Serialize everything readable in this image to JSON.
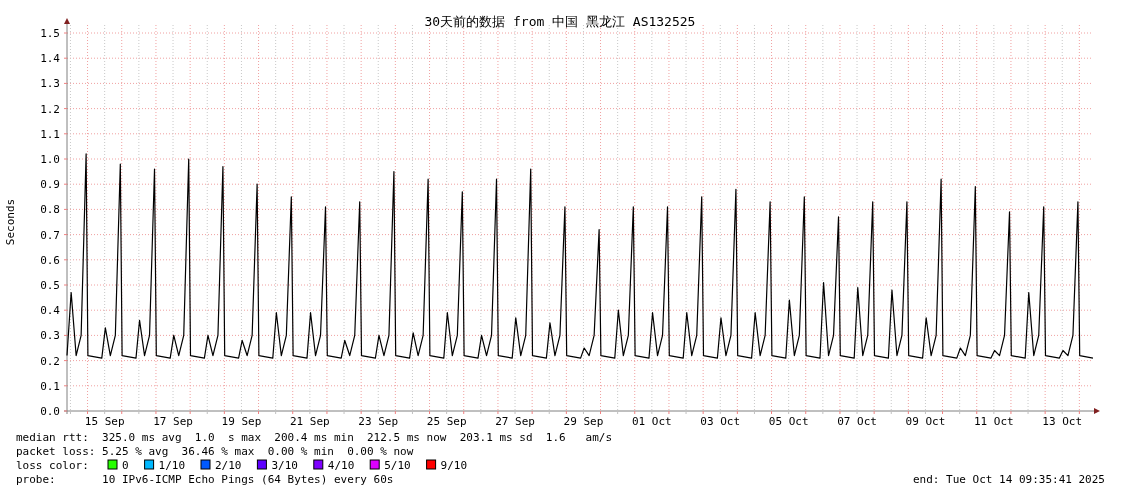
{
  "chart_data": {
    "type": "line",
    "title": "30天前的数据 from 中国 黑龙江 AS132525",
    "ylabel": "Seconds",
    "legend_title": "loss color:",
    "legend": "bottom",
    "grid": true,
    "xlim": [
      "2025-09-14T09:35",
      "2025-10-14T09:35"
    ],
    "xticks": [
      {
        "value": "2025-09-14T12:00",
        "label": null
      },
      {
        "value": "2025-09-15T00:00",
        "label": null
      },
      {
        "value": "2025-09-15T12:00",
        "label": "15 Sep"
      },
      {
        "value": "2025-09-16T00:00",
        "label": null
      },
      {
        "value": "2025-09-16T12:00",
        "label": null
      },
      {
        "value": "2025-09-17T00:00",
        "label": null
      },
      {
        "value": "2025-09-17T12:00",
        "label": "17 Sep"
      },
      {
        "value": "2025-09-18T00:00",
        "label": null
      },
      {
        "value": "2025-09-18T12:00",
        "label": null
      },
      {
        "value": "2025-09-19T00:00",
        "label": null
      },
      {
        "value": "2025-09-19T12:00",
        "label": "19 Sep"
      },
      {
        "value": "2025-09-20T00:00",
        "label": null
      },
      {
        "value": "2025-09-20T12:00",
        "label": null
      },
      {
        "value": "2025-09-21T00:00",
        "label": null
      },
      {
        "value": "2025-09-21T12:00",
        "label": "21 Sep"
      },
      {
        "value": "2025-09-22T00:00",
        "label": null
      },
      {
        "value": "2025-09-22T12:00",
        "label": null
      },
      {
        "value": "2025-09-23T00:00",
        "label": null
      },
      {
        "value": "2025-09-23T12:00",
        "label": "23 Sep"
      },
      {
        "value": "2025-09-24T00:00",
        "label": null
      },
      {
        "value": "2025-09-24T12:00",
        "label": null
      },
      {
        "value": "2025-09-25T00:00",
        "label": null
      },
      {
        "value": "2025-09-25T12:00",
        "label": "25 Sep"
      },
      {
        "value": "2025-09-26T00:00",
        "label": null
      },
      {
        "value": "2025-09-26T12:00",
        "label": null
      },
      {
        "value": "2025-09-27T00:00",
        "label": null
      },
      {
        "value": "2025-09-27T12:00",
        "label": "27 Sep"
      },
      {
        "value": "2025-09-28T00:00",
        "label": null
      },
      {
        "value": "2025-09-28T12:00",
        "label": null
      },
      {
        "value": "2025-09-29T00:00",
        "label": null
      },
      {
        "value": "2025-09-29T12:00",
        "label": "29 Sep"
      },
      {
        "value": "2025-09-30T00:00",
        "label": null
      },
      {
        "value": "2025-09-30T12:00",
        "label": null
      },
      {
        "value": "2025-10-01T00:00",
        "label": null
      },
      {
        "value": "2025-10-01T12:00",
        "label": "01 Oct"
      },
      {
        "value": "2025-10-02T00:00",
        "label": null
      },
      {
        "value": "2025-10-02T12:00",
        "label": null
      },
      {
        "value": "2025-10-03T00:00",
        "label": null
      },
      {
        "value": "2025-10-03T12:00",
        "label": "03 Oct"
      },
      {
        "value": "2025-10-04T00:00",
        "label": null
      },
      {
        "value": "2025-10-04T12:00",
        "label": null
      },
      {
        "value": "2025-10-05T00:00",
        "label": null
      },
      {
        "value": "2025-10-05T12:00",
        "label": "05 Oct"
      },
      {
        "value": "2025-10-06T00:00",
        "label": null
      },
      {
        "value": "2025-10-06T12:00",
        "label": null
      },
      {
        "value": "2025-10-07T00:00",
        "label": null
      },
      {
        "value": "2025-10-07T12:00",
        "label": "07 Oct"
      },
      {
        "value": "2025-10-08T00:00",
        "label": null
      },
      {
        "value": "2025-10-08T12:00",
        "label": null
      },
      {
        "value": "2025-10-09T00:00",
        "label": null
      },
      {
        "value": "2025-10-09T12:00",
        "label": "09 Oct"
      },
      {
        "value": "2025-10-10T00:00",
        "label": null
      },
      {
        "value": "2025-10-10T12:00",
        "label": null
      },
      {
        "value": "2025-10-11T00:00",
        "label": null
      },
      {
        "value": "2025-10-11T12:00",
        "label": "11 Oct"
      },
      {
        "value": "2025-10-12T00:00",
        "label": null
      },
      {
        "value": "2025-10-12T12:00",
        "label": null
      },
      {
        "value": "2025-10-13T00:00",
        "label": null
      },
      {
        "value": "2025-10-13T12:00",
        "label": "13 Oct"
      },
      {
        "value": "2025-10-14T00:00",
        "label": null
      }
    ],
    "ylim": [
      0,
      1.5
    ],
    "yticks": [
      {
        "value": 0,
        "label": "0.0"
      },
      {
        "value": 0.1,
        "label": "0.1"
      },
      {
        "value": 0.2,
        "label": "0.2"
      },
      {
        "value": 0.3,
        "label": "0.3"
      },
      {
        "value": 0.4,
        "label": "0.4"
      },
      {
        "value": 0.5,
        "label": "0.5"
      },
      {
        "value": 0.6,
        "label": "0.6"
      },
      {
        "value": 0.7,
        "label": "0.7"
      },
      {
        "value": 0.8,
        "label": "0.8"
      },
      {
        "value": 0.9,
        "label": "0.9"
      },
      {
        "value": 1,
        "label": "1.0"
      },
      {
        "value": 1.1,
        "label": "1.1"
      },
      {
        "value": 1.2,
        "label": "1.2"
      },
      {
        "value": 1.3,
        "label": "1.3"
      },
      {
        "value": 1.4,
        "label": "1.4"
      },
      {
        "value": 1.5,
        "label": "1.5"
      }
    ],
    "series": [
      {
        "type": "line",
        "color": "#000000",
        "x": [
          "2025-09-14T09:35",
          "2025-09-14T12:30",
          "2025-09-14T16:00",
          "2025-09-14T19:30",
          "2025-09-14T23:00",
          "2025-09-15T00:15",
          "2025-09-15T10:00",
          "2025-09-15T12:30",
          "2025-09-15T16:00",
          "2025-09-15T19:30",
          "2025-09-15T23:00",
          "2025-09-16T00:15",
          "2025-09-16T10:00",
          "2025-09-16T12:30",
          "2025-09-16T16:00",
          "2025-09-16T19:30",
          "2025-09-16T23:00",
          "2025-09-17T00:15",
          "2025-09-17T10:00",
          "2025-09-17T12:30",
          "2025-09-17T16:00",
          "2025-09-17T19:30",
          "2025-09-17T23:00",
          "2025-09-18T00:15",
          "2025-09-18T10:00",
          "2025-09-18T12:30",
          "2025-09-18T16:00",
          "2025-09-18T19:30",
          "2025-09-18T23:00",
          "2025-09-19T00:15",
          "2025-09-19T10:00",
          "2025-09-19T12:30",
          "2025-09-19T16:00",
          "2025-09-19T19:30",
          "2025-09-19T23:00",
          "2025-09-20T00:15",
          "2025-09-20T10:00",
          "2025-09-20T12:30",
          "2025-09-20T16:00",
          "2025-09-20T19:30",
          "2025-09-20T23:00",
          "2025-09-21T00:15",
          "2025-09-21T10:00",
          "2025-09-21T12:30",
          "2025-09-21T16:00",
          "2025-09-21T19:30",
          "2025-09-21T23:00",
          "2025-09-22T00:15",
          "2025-09-22T10:00",
          "2025-09-22T12:30",
          "2025-09-22T16:00",
          "2025-09-22T19:30",
          "2025-09-22T23:00",
          "2025-09-23T00:15",
          "2025-09-23T10:00",
          "2025-09-23T12:30",
          "2025-09-23T16:00",
          "2025-09-23T19:30",
          "2025-09-23T23:00",
          "2025-09-24T00:15",
          "2025-09-24T10:00",
          "2025-09-24T12:30",
          "2025-09-24T16:00",
          "2025-09-24T19:30",
          "2025-09-24T23:00",
          "2025-09-25T00:15",
          "2025-09-25T10:00",
          "2025-09-25T12:30",
          "2025-09-25T16:00",
          "2025-09-25T19:30",
          "2025-09-25T23:00",
          "2025-09-26T00:15",
          "2025-09-26T10:00",
          "2025-09-26T12:30",
          "2025-09-26T16:00",
          "2025-09-26T19:30",
          "2025-09-26T23:00",
          "2025-09-27T00:15",
          "2025-09-27T10:00",
          "2025-09-27T12:30",
          "2025-09-27T16:00",
          "2025-09-27T19:30",
          "2025-09-27T23:00",
          "2025-09-28T00:15",
          "2025-09-28T10:00",
          "2025-09-28T12:30",
          "2025-09-28T16:00",
          "2025-09-28T19:30",
          "2025-09-28T23:00",
          "2025-09-29T00:15",
          "2025-09-29T10:00",
          "2025-09-29T12:30",
          "2025-09-29T16:00",
          "2025-09-29T19:30",
          "2025-09-29T23:00",
          "2025-09-30T00:15",
          "2025-09-30T10:00",
          "2025-09-30T12:30",
          "2025-09-30T16:00",
          "2025-09-30T19:30",
          "2025-09-30T23:00",
          "2025-10-01T00:15",
          "2025-10-01T10:00",
          "2025-10-01T12:30",
          "2025-10-01T16:00",
          "2025-10-01T19:30",
          "2025-10-01T23:00",
          "2025-10-02T00:15",
          "2025-10-02T10:00",
          "2025-10-02T12:30",
          "2025-10-02T16:00",
          "2025-10-02T19:30",
          "2025-10-02T23:00",
          "2025-10-03T00:15",
          "2025-10-03T10:00",
          "2025-10-03T12:30",
          "2025-10-03T16:00",
          "2025-10-03T19:30",
          "2025-10-03T23:00",
          "2025-10-04T00:15",
          "2025-10-04T10:00",
          "2025-10-04T12:30",
          "2025-10-04T16:00",
          "2025-10-04T19:30",
          "2025-10-04T23:00",
          "2025-10-05T00:15",
          "2025-10-05T10:00",
          "2025-10-05T12:30",
          "2025-10-05T16:00",
          "2025-10-05T19:30",
          "2025-10-05T23:00",
          "2025-10-06T00:15",
          "2025-10-06T10:00",
          "2025-10-06T12:30",
          "2025-10-06T16:00",
          "2025-10-06T19:30",
          "2025-10-06T23:00",
          "2025-10-07T00:15",
          "2025-10-07T10:00",
          "2025-10-07T12:30",
          "2025-10-07T16:00",
          "2025-10-07T19:30",
          "2025-10-07T23:00",
          "2025-10-08T00:15",
          "2025-10-08T10:00",
          "2025-10-08T12:30",
          "2025-10-08T16:00",
          "2025-10-08T19:30",
          "2025-10-08T23:00",
          "2025-10-09T00:15",
          "2025-10-09T10:00",
          "2025-10-09T12:30",
          "2025-10-09T16:00",
          "2025-10-09T19:30",
          "2025-10-09T23:00",
          "2025-10-10T00:15",
          "2025-10-10T10:00",
          "2025-10-10T12:30",
          "2025-10-10T16:00",
          "2025-10-10T19:30",
          "2025-10-10T23:00",
          "2025-10-11T00:15",
          "2025-10-11T10:00",
          "2025-10-11T12:30",
          "2025-10-11T16:00",
          "2025-10-11T19:30",
          "2025-10-11T23:00",
          "2025-10-12T00:15",
          "2025-10-12T10:00",
          "2025-10-12T12:30",
          "2025-10-12T16:00",
          "2025-10-12T19:30",
          "2025-10-12T23:00",
          "2025-10-13T00:15",
          "2025-10-13T10:00",
          "2025-10-13T12:30",
          "2025-10-13T16:00",
          "2025-10-13T19:30",
          "2025-10-13T23:00",
          "2025-10-14T00:15",
          "2025-10-14T09:35"
        ],
        "values": [
          0.22,
          0.47,
          0.22,
          0.3,
          1.02,
          0.22,
          0.21,
          0.33,
          0.22,
          0.3,
          0.98,
          0.22,
          0.21,
          0.36,
          0.22,
          0.3,
          0.96,
          0.22,
          0.21,
          0.3,
          0.22,
          0.3,
          1.0,
          0.22,
          0.21,
          0.3,
          0.22,
          0.3,
          0.97,
          0.22,
          0.21,
          0.28,
          0.22,
          0.3,
          0.9,
          0.22,
          0.21,
          0.39,
          0.22,
          0.3,
          0.85,
          0.22,
          0.21,
          0.39,
          0.22,
          0.3,
          0.81,
          0.22,
          0.21,
          0.28,
          0.22,
          0.3,
          0.83,
          0.22,
          0.21,
          0.3,
          0.22,
          0.3,
          0.95,
          0.22,
          0.21,
          0.31,
          0.22,
          0.3,
          0.92,
          0.22,
          0.21,
          0.39,
          0.22,
          0.3,
          0.87,
          0.22,
          0.21,
          0.3,
          0.22,
          0.3,
          0.92,
          0.22,
          0.21,
          0.37,
          0.22,
          0.3,
          0.96,
          0.22,
          0.21,
          0.35,
          0.22,
          0.3,
          0.81,
          0.22,
          0.21,
          0.25,
          0.22,
          0.3,
          0.72,
          0.22,
          0.21,
          0.4,
          0.22,
          0.3,
          0.81,
          0.22,
          0.21,
          0.39,
          0.22,
          0.3,
          0.81,
          0.22,
          0.21,
          0.39,
          0.22,
          0.3,
          0.85,
          0.22,
          0.21,
          0.37,
          0.22,
          0.3,
          0.88,
          0.22,
          0.21,
          0.39,
          0.22,
          0.3,
          0.83,
          0.22,
          0.21,
          0.44,
          0.22,
          0.3,
          0.85,
          0.22,
          0.21,
          0.51,
          0.22,
          0.3,
          0.77,
          0.22,
          0.21,
          0.49,
          0.22,
          0.3,
          0.83,
          0.22,
          0.21,
          0.48,
          0.22,
          0.3,
          0.83,
          0.22,
          0.21,
          0.37,
          0.22,
          0.3,
          0.92,
          0.22,
          0.21,
          0.25,
          0.22,
          0.3,
          0.89,
          0.22,
          0.21,
          0.24,
          0.22,
          0.3,
          0.79,
          0.22,
          0.21,
          0.47,
          0.22,
          0.3,
          0.81,
          0.22,
          0.21,
          0.24,
          0.22,
          0.3,
          0.83,
          0.22,
          0.21
        ]
      },
      {
        "type": "scatter",
        "name": "0",
        "color": "#26ff00"
      },
      {
        "type": "scatter",
        "name": "1/10",
        "color": "#00b8ff"
      },
      {
        "type": "scatter",
        "name": "2/10",
        "color": "#0059ff"
      },
      {
        "type": "scatter",
        "name": "3/10",
        "color": "#5e00ff"
      },
      {
        "type": "scatter",
        "name": "4/10",
        "color": "#7e00ff"
      },
      {
        "type": "scatter",
        "name": "5/10",
        "color": "#dd00ff"
      },
      {
        "type": "scatter",
        "name": "9/10",
        "color": "#ff0000"
      }
    ],
    "annotations": [
      "median rtt:  325.0 ms avg  1.0  s max  200.4 ms min  212.5 ms now  203.1 ms sd  1.6   am/s",
      "packet loss: 5.25 % avg  36.46 % max  0.00 % min  0.00 % now",
      "probe:       10 IPv6-ICMP Echo Pings (64 Bytes) every 60s",
      "end: Tue Oct 14 09:35:41 2025"
    ]
  }
}
